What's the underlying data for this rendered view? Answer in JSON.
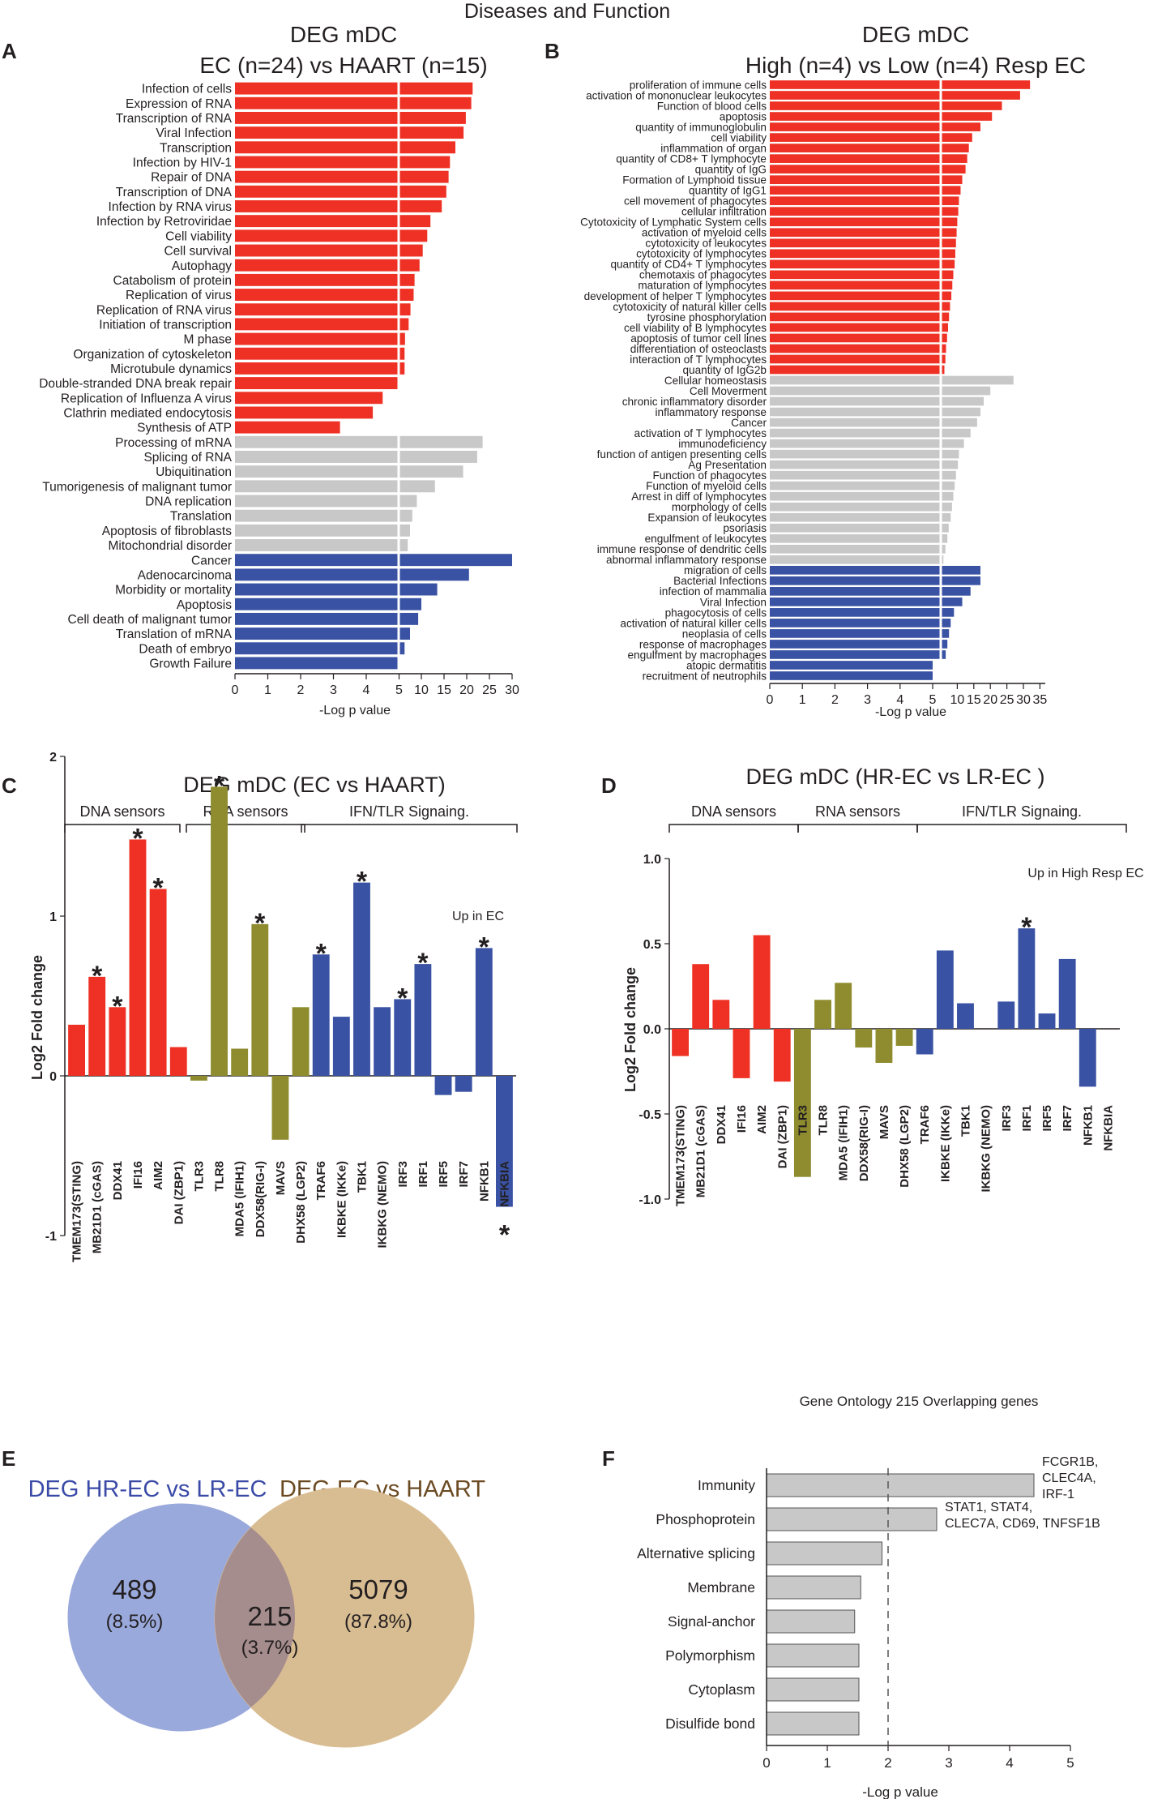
{
  "figure_title": "Diseases and Function",
  "colors": {
    "red": "#ee3124",
    "gray": "#c8c8c8",
    "blue": "#3952a3",
    "olive": "#8e8c2e",
    "venn_left": "#9aa9dc",
    "venn_right": "#d9bd92",
    "venn_overlap": "#a68d8d",
    "venn_left_text": "#3a4aa6",
    "venn_right_text": "#6b4a22"
  },
  "panels": {
    "A": {
      "letter": "A",
      "title_line1": "DEG mDC",
      "title_line2": "EC (n=24) vs HAART (n=15)",
      "xlabel": "-Log p value",
      "ticks": [
        "0",
        "1",
        "2",
        "3",
        "4",
        "5",
        "10",
        "15",
        "20",
        "25",
        "30"
      ]
    },
    "B": {
      "letter": "B",
      "title_line1": "DEG mDC",
      "title_line2": "High (n=4) vs Low (n=4) Resp EC",
      "xlabel": "-Log p value",
      "ticks": [
        "0",
        "1",
        "2",
        "3",
        "4",
        "5",
        "10",
        "15",
        "20",
        "25",
        "30",
        "35"
      ]
    },
    "C": {
      "letter": "C",
      "title": "DEG mDC (EC vs HAART)",
      "group_labels": [
        "DNA sensors",
        "RNA sensors",
        "IFN/TLR Signaing."
      ],
      "note": "Up in EC",
      "ylabel": "Log2 Fold change",
      "yticks": [
        "2",
        "1",
        "0",
        "-1"
      ],
      "star": "*"
    },
    "D": {
      "letter": "D",
      "title": "DEG mDC (HR-EC vs LR-EC )",
      "group_labels": [
        "DNA sensors",
        "RNA sensors",
        "IFN/TLR Signaing."
      ],
      "note": "Up in High Resp EC",
      "ylabel": "Log2 Fold change",
      "yticks": [
        "1.0",
        "0.5",
        "0.0",
        "-0.5",
        "-1.0"
      ],
      "star": "*"
    },
    "E": {
      "letter": "E",
      "left_label": "DEG HR-EC vs LR-EC",
      "right_label": "DEG EC vs HAART",
      "left_count": "489",
      "left_pct": "(8.5%)",
      "overlap_count": "215",
      "overlap_pct": "(3.7%)",
      "right_count": "5079",
      "right_pct": "(87.8%)"
    },
    "F": {
      "letter": "F",
      "title": "Gene Ontology 215 Overlapping genes",
      "xlabel": "-Log p value",
      "ticks": [
        "0",
        "1",
        "2",
        "3",
        "4",
        "5"
      ]
    }
  },
  "chart_data": [
    {
      "id": "A",
      "type": "bar",
      "orientation": "horizontal",
      "title": "DEG mDC EC (n=24) vs HAART (n=15)",
      "xlabel": "-Log p value",
      "xlim": [
        0,
        30
      ],
      "axis_break_at": 5,
      "series": [
        {
          "name": "red",
          "items": [
            {
              "label": "Infection of cells",
              "value": 21.3
            },
            {
              "label": "Expression of RNA",
              "value": 21.0
            },
            {
              "label": "Transcription of RNA",
              "value": 19.8
            },
            {
              "label": "Viral Infection",
              "value": 19.3
            },
            {
              "label": "Transcription",
              "value": 17.5
            },
            {
              "label": "Infection by HIV-1",
              "value": 16.3
            },
            {
              "label": "Repair of DNA",
              "value": 16.0
            },
            {
              "label": "Transcription of DNA",
              "value": 15.5
            },
            {
              "label": "Infection by RNA virus",
              "value": 14.5
            },
            {
              "label": "Infection by Retroviridae",
              "value": 12.0
            },
            {
              "label": "Cell viability",
              "value": 11.3
            },
            {
              "label": "Cell survival",
              "value": 10.3
            },
            {
              "label": "Autophagy",
              "value": 9.6
            },
            {
              "label": "Catabolism of protein",
              "value": 8.5
            },
            {
              "label": "Replication of virus",
              "value": 8.3
            },
            {
              "label": "Replication of RNA virus",
              "value": 7.6
            },
            {
              "label": "Initiation of transcription",
              "value": 7.2
            },
            {
              "label": "M phase",
              "value": 6.4
            },
            {
              "label": "Organization of cytoskeleton",
              "value": 6.3
            },
            {
              "label": "Microtubule dynamics",
              "value": 6.3
            },
            {
              "label": "Double-stranded DNA break repair",
              "value": 5.0
            },
            {
              "label": "Replication of Influenza A virus",
              "value": 4.5
            },
            {
              "label": "Clathrin mediated endocytosis",
              "value": 4.2
            },
            {
              "label": "Synthesis of ATP",
              "value": 3.2
            }
          ]
        },
        {
          "name": "gray",
          "items": [
            {
              "label": "Processing of mRNA",
              "value": 23.5
            },
            {
              "label": "Splicing of RNA",
              "value": 22.3
            },
            {
              "label": "Ubiquitination",
              "value": 19.2
            },
            {
              "label": "Tumorigenesis of malignant tumor",
              "value": 13.0
            },
            {
              "label": "DNA replication",
              "value": 9.0
            },
            {
              "label": "Translation",
              "value": 8.0
            },
            {
              "label": "Apoptosis of fibroblasts",
              "value": 7.5
            },
            {
              "label": "Mitochondrial disorder",
              "value": 7.0
            }
          ]
        },
        {
          "name": "blue",
          "items": [
            {
              "label": "Cancer",
              "value": 30.0
            },
            {
              "label": "Adenocarcinoma",
              "value": 20.5
            },
            {
              "label": "Morbidity or mortality",
              "value": 13.5
            },
            {
              "label": "Apoptosis",
              "value": 10.0
            },
            {
              "label": "Cell death of malignant tumor",
              "value": 9.3
            },
            {
              "label": "Translation of mRNA",
              "value": 7.5
            },
            {
              "label": "Death of embryo",
              "value": 6.3
            },
            {
              "label": "Growth Failure",
              "value": 5.0
            }
          ]
        }
      ]
    },
    {
      "id": "B",
      "type": "bar",
      "orientation": "horizontal",
      "title": "DEG mDC High (n=4) vs Low (n=4) Resp EC",
      "xlabel": "-Log p value",
      "xlim": [
        0,
        35
      ],
      "axis_break_at": 5,
      "series": [
        {
          "name": "red",
          "items": [
            {
              "label": "proliferation of immune cells",
              "value": 32.0
            },
            {
              "label": "activation of mononuclear leukocytes",
              "value": 29.0
            },
            {
              "label": "Function of blood cells",
              "value": 23.5
            },
            {
              "label": "apoptosis",
              "value": 20.5
            },
            {
              "label": "quantity of immunoglobulin",
              "value": 17.0
            },
            {
              "label": "cell viability",
              "value": 14.5
            },
            {
              "label": "inflammation of organ",
              "value": 13.5
            },
            {
              "label": "quantity of CD8+ T lymphocyte",
              "value": 13.0
            },
            {
              "label": "quantity of IgG",
              "value": 12.5
            },
            {
              "label": "Formation of Lymphoid tissue",
              "value": 11.5
            },
            {
              "label": "quantity of IgG1",
              "value": 11.0
            },
            {
              "label": "cell movement of phagocytes",
              "value": 10.5
            },
            {
              "label": "cellular infiltration",
              "value": 10.3
            },
            {
              "label": "Cytotoxicity of Lymphatic System cells",
              "value": 10.0
            },
            {
              "label": "activation of myeloid cells",
              "value": 9.8
            },
            {
              "label": "cytotoxicity of leukocytes",
              "value": 9.6
            },
            {
              "label": "cytotoxicity of lymphocytes",
              "value": 9.4
            },
            {
              "label": "quantity of CD4+ T lymphocytes",
              "value": 9.2
            },
            {
              "label": "chemotaxis of phagocytes",
              "value": 8.8
            },
            {
              "label": "maturation of lymphocytes",
              "value": 8.5
            },
            {
              "label": "development of helper T lymphocytes",
              "value": 8.2
            },
            {
              "label": "cytotoxicity of natural killer cells",
              "value": 7.8
            },
            {
              "label": "tyrosine phosphorylation",
              "value": 7.5
            },
            {
              "label": "cell viability of B lymphocytes",
              "value": 7.2
            },
            {
              "label": "apoptosis of tumor cell lines",
              "value": 6.9
            },
            {
              "label": "differentiation of osteoclasts",
              "value": 6.6
            },
            {
              "label": "interaction of T lymphocytes",
              "value": 6.4
            },
            {
              "label": "quantity of IgG2b",
              "value": 6.1
            }
          ]
        },
        {
          "name": "gray",
          "items": [
            {
              "label": "Cellular homeostasis",
              "value": 27.0
            },
            {
              "label": "Cell Moverment",
              "value": 20.0
            },
            {
              "label": "chronic inflammatory disorder",
              "value": 18.0
            },
            {
              "label": "inflammatory response",
              "value": 17.0
            },
            {
              "label": "Cancer",
              "value": 16.0
            },
            {
              "label": "activation of T lymphocytes",
              "value": 14.0
            },
            {
              "label": "immunodeficiency",
              "value": 12.0
            },
            {
              "label": "function of antigen presenting cells",
              "value": 10.5
            },
            {
              "label": "Ag Presentation",
              "value": 10.2
            },
            {
              "label": "Function of phagocytes",
              "value": 9.6
            },
            {
              "label": "Function of myeloid cells",
              "value": 9.2
            },
            {
              "label": "Arrest in diff of lymphocytes",
              "value": 8.8
            },
            {
              "label": "morphology of cells",
              "value": 8.4
            },
            {
              "label": "Expansion of leukocytes",
              "value": 8.0
            },
            {
              "label": "psoriasis",
              "value": 7.4
            },
            {
              "label": "engulfment of leukocytes",
              "value": 7.0
            },
            {
              "label": "immune response of dendritic cells",
              "value": 6.4
            },
            {
              "label": "abnormal inflammatory response",
              "value": 5.8
            }
          ]
        },
        {
          "name": "blue",
          "items": [
            {
              "label": "migration of cells",
              "value": 17.0
            },
            {
              "label": "Bacterial Infections",
              "value": 17.0
            },
            {
              "label": "infection of mammalia",
              "value": 14.0
            },
            {
              "label": "Viral Infection",
              "value": 11.5
            },
            {
              "label": "phagocytosis of cells",
              "value": 9.0
            },
            {
              "label": "activation of natural killer cells",
              "value": 8.0
            },
            {
              "label": "neoplasia of cells",
              "value": 7.5
            },
            {
              "label": "response of macrophages",
              "value": 7.0
            },
            {
              "label": "engulfment by macrophages",
              "value": 6.5
            },
            {
              "label": "atopic dermatitis",
              "value": 5.0
            },
            {
              "label": "recruitment of neutrophils",
              "value": 5.0
            }
          ]
        }
      ]
    },
    {
      "id": "C",
      "type": "bar",
      "title": "DEG mDC (EC vs HAART)",
      "ylabel": "Log2 Fold change",
      "ylim": [
        -1,
        2
      ],
      "categories": [
        "TMEM173(STING)",
        "MB21D1 (cGAS)",
        "DDX41",
        "IFI16",
        "AIM2",
        "DAI (ZBP1)",
        "TLR3",
        "TLR8",
        "MDA5 (IFIH1)",
        "DDX58(RIG-I)",
        "MAVS",
        "DHX58 (LGP2)",
        "TRAF6",
        "IKBKE (IKKe)",
        "TBK1",
        "IKBKG (NEMO)",
        "IRF3",
        "IRF1",
        "IRF5",
        "IRF7",
        "NFKB1",
        "NFKBIA"
      ],
      "values": [
        0.32,
        0.62,
        0.43,
        1.48,
        1.17,
        0.18,
        -0.03,
        1.81,
        0.17,
        0.95,
        -0.4,
        0.43,
        0.76,
        0.37,
        1.21,
        0.43,
        0.48,
        0.7,
        -0.12,
        -0.1,
        0.8,
        -0.82
      ],
      "groups": [
        "red",
        "red",
        "red",
        "red",
        "red",
        "red",
        "olive",
        "olive",
        "olive",
        "olive",
        "olive",
        "olive",
        "blue",
        "blue",
        "blue",
        "blue",
        "blue",
        "blue",
        "blue",
        "blue",
        "blue",
        "blue"
      ],
      "significant": [
        false,
        true,
        true,
        true,
        true,
        false,
        false,
        true,
        false,
        true,
        false,
        false,
        true,
        false,
        true,
        false,
        true,
        true,
        false,
        false,
        true,
        true
      ]
    },
    {
      "id": "D",
      "type": "bar",
      "title": "DEG mDC (HR-EC vs LR-EC )",
      "ylabel": "Log2 Fold change",
      "ylim": [
        -1,
        1
      ],
      "categories": [
        "TMEM173(STING)",
        "MB21D1 (cGAS)",
        "DDX41",
        "IFI16",
        "AIM2",
        "DAI (ZBP1)",
        "TLR3",
        "TLR8",
        "MDA5 (IFIH1)",
        "DDX58(RIG-I)",
        "MAVS",
        "DHX58 (LGP2)",
        "TRAF6",
        "IKBKE (IKKe)",
        "TBK1",
        "IKBKG (NEMO)",
        "IRF3",
        "IRF1",
        "IRF5",
        "IRF7",
        "NFKB1",
        "NFKBIA"
      ],
      "values": [
        -0.16,
        0.38,
        0.17,
        -0.29,
        0.55,
        -0.31,
        -0.87,
        0.17,
        0.27,
        -0.11,
        -0.2,
        -0.1,
        -0.15,
        0.46,
        0.15,
        0.0,
        0.16,
        0.59,
        0.09,
        0.41,
        -0.34,
        0.0
      ],
      "groups": [
        "red",
        "red",
        "red",
        "red",
        "red",
        "red",
        "olive",
        "olive",
        "olive",
        "olive",
        "olive",
        "olive",
        "blue",
        "blue",
        "blue",
        "blue",
        "blue",
        "blue",
        "blue",
        "blue",
        "blue",
        "blue"
      ],
      "significant": [
        false,
        false,
        false,
        false,
        false,
        false,
        false,
        false,
        false,
        false,
        false,
        false,
        false,
        false,
        false,
        false,
        false,
        true,
        false,
        false,
        false,
        false
      ]
    },
    {
      "id": "F",
      "type": "bar",
      "orientation": "horizontal",
      "title": "Gene Ontology 215 Overlapping genes",
      "xlabel": "-Log p value",
      "xlim": [
        0,
        5
      ],
      "threshold": 2,
      "categories": [
        "Immunity",
        "Phosphoprotein",
        "Alternative splicing",
        "Membrane",
        "Signal-anchor",
        "Polymorphism",
        "Cytoplasm",
        "Disulfide bond"
      ],
      "values": [
        4.4,
        2.8,
        1.9,
        1.55,
        1.45,
        1.52,
        1.52,
        1.52
      ],
      "annotations": [
        {
          "category": "Immunity",
          "lines": [
            "FCGR1B,",
            "CLEC4A,",
            "IRF-1"
          ]
        },
        {
          "category": "Phosphoprotein",
          "lines": [
            "STAT1, STAT4,",
            "CLEC7A, CD69, TNFSF1B"
          ]
        }
      ]
    }
  ]
}
